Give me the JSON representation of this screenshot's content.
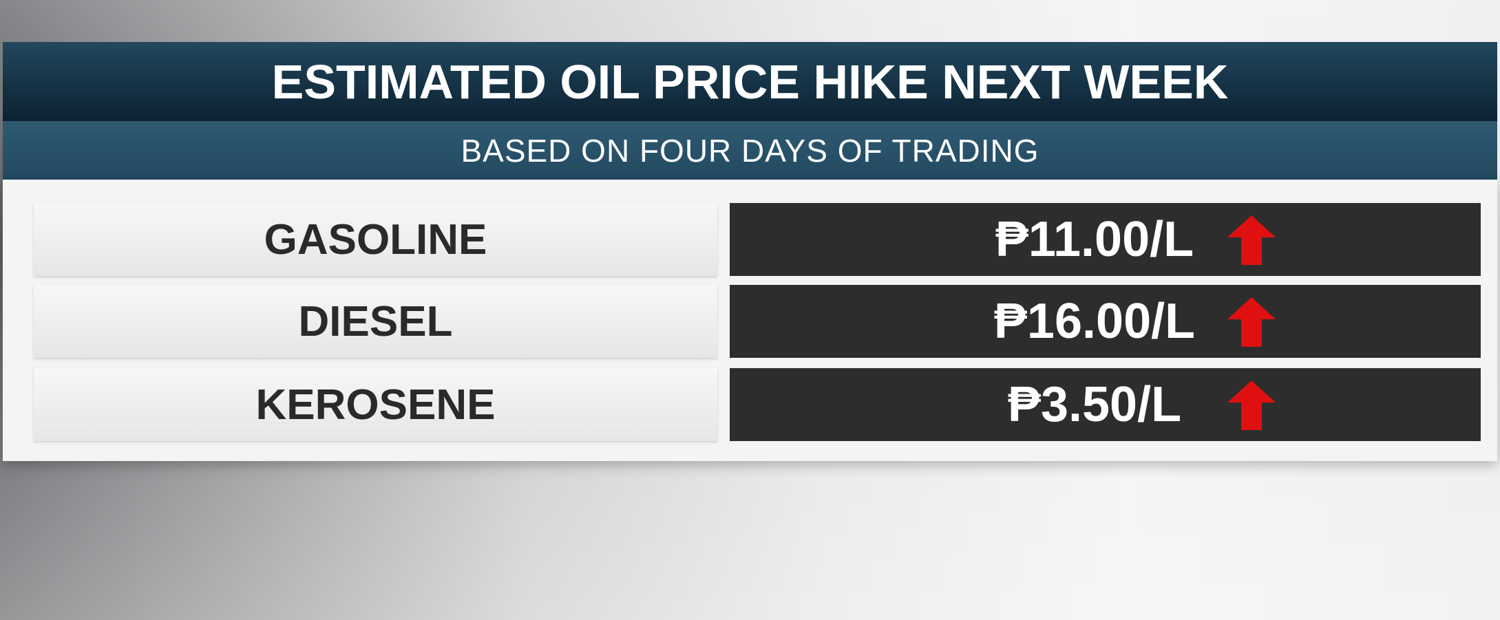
{
  "header": {
    "title": "ESTIMATED OIL PRICE HIKE NEXT WEEK",
    "subtitle": "BASED ON FOUR DAYS OF TRADING"
  },
  "table": {
    "rows": [
      [
        "GASOLINE",
        "₱11.00/L"
      ],
      [
        "DIESEL",
        "₱16.00/L"
      ],
      [
        "KEROSENE",
        "₱3.50/L"
      ]
    ]
  }
}
